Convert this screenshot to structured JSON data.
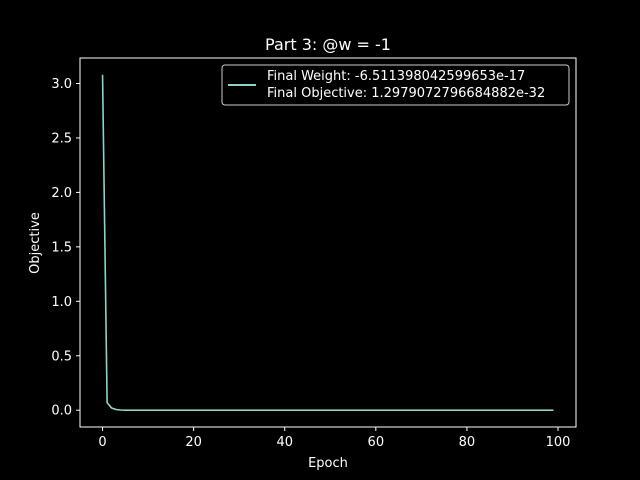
{
  "chart_data": {
    "type": "line",
    "title": "Part 3: @w = -1",
    "xlabel": "Epoch",
    "ylabel": "Objective",
    "xlim": [
      -4.95,
      103.95
    ],
    "ylim": [
      -0.154,
      3.234
    ],
    "xticks": [
      0,
      20,
      40,
      60,
      80,
      100
    ],
    "xtick_labels": [
      "0",
      "20",
      "40",
      "60",
      "80",
      "100"
    ],
    "yticks": [
      0.0,
      0.5,
      1.0,
      1.5,
      2.0,
      2.5,
      3.0
    ],
    "ytick_labels": [
      "0.0",
      "0.5",
      "1.0",
      "1.5",
      "2.0",
      "2.5",
      "3.0"
    ],
    "grid": false,
    "legend_position": "top-right",
    "colors": {
      "background": "#000000",
      "foreground": "#ffffff",
      "line": "#8dd3c7"
    },
    "series": [
      {
        "legend_lines": [
          "Final Weight: -6.511398042599653e-17",
          "Final Objective: 1.2979072796684882e-32"
        ],
        "color": "#8dd3c7",
        "x_start": 0,
        "x_end": 99,
        "values": [
          3.08,
          0.07,
          0.02,
          0.006,
          0.002,
          0.0008,
          0.0003,
          0.0001,
          4e-05,
          1e-05,
          5e-06,
          0.0
        ]
      }
    ]
  }
}
